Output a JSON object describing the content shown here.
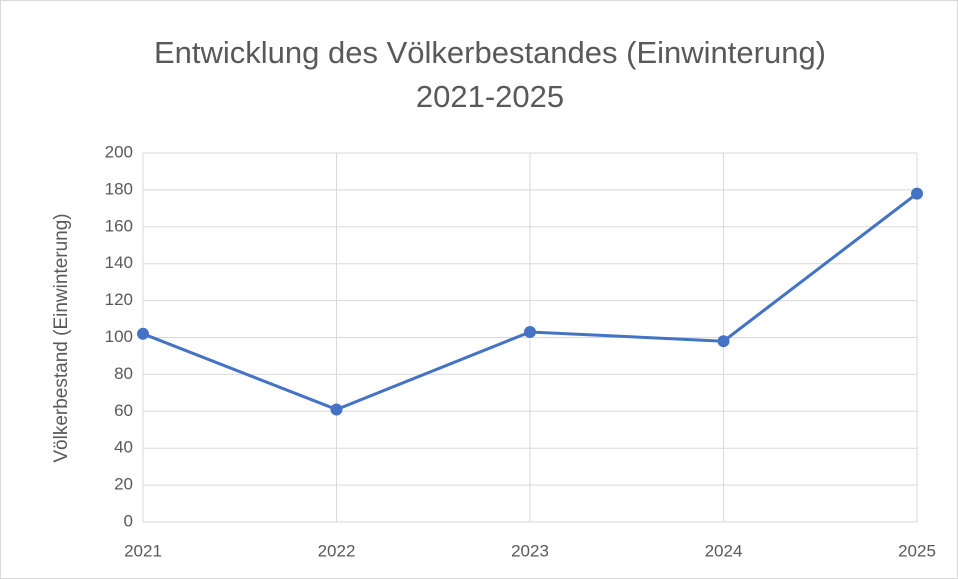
{
  "chart_data": {
    "type": "line",
    "title": [
      "Entwicklung des Völkerbestandes (Einwinterung)",
      "2021-2025"
    ],
    "y_label": "Völkerbestand (Einwinterung)",
    "categories": [
      "2021",
      "2022",
      "2023",
      "2024",
      "2025"
    ],
    "series": [
      {
        "name": "Völkerbestand (Einwinterung)",
        "color": "#4472c4",
        "values": [
          102,
          61,
          103,
          98,
          178
        ]
      }
    ],
    "ylim": [
      0,
      200
    ],
    "yticks": [
      0,
      20,
      40,
      60,
      80,
      100,
      120,
      140,
      160,
      180,
      200
    ],
    "grid": true
  }
}
